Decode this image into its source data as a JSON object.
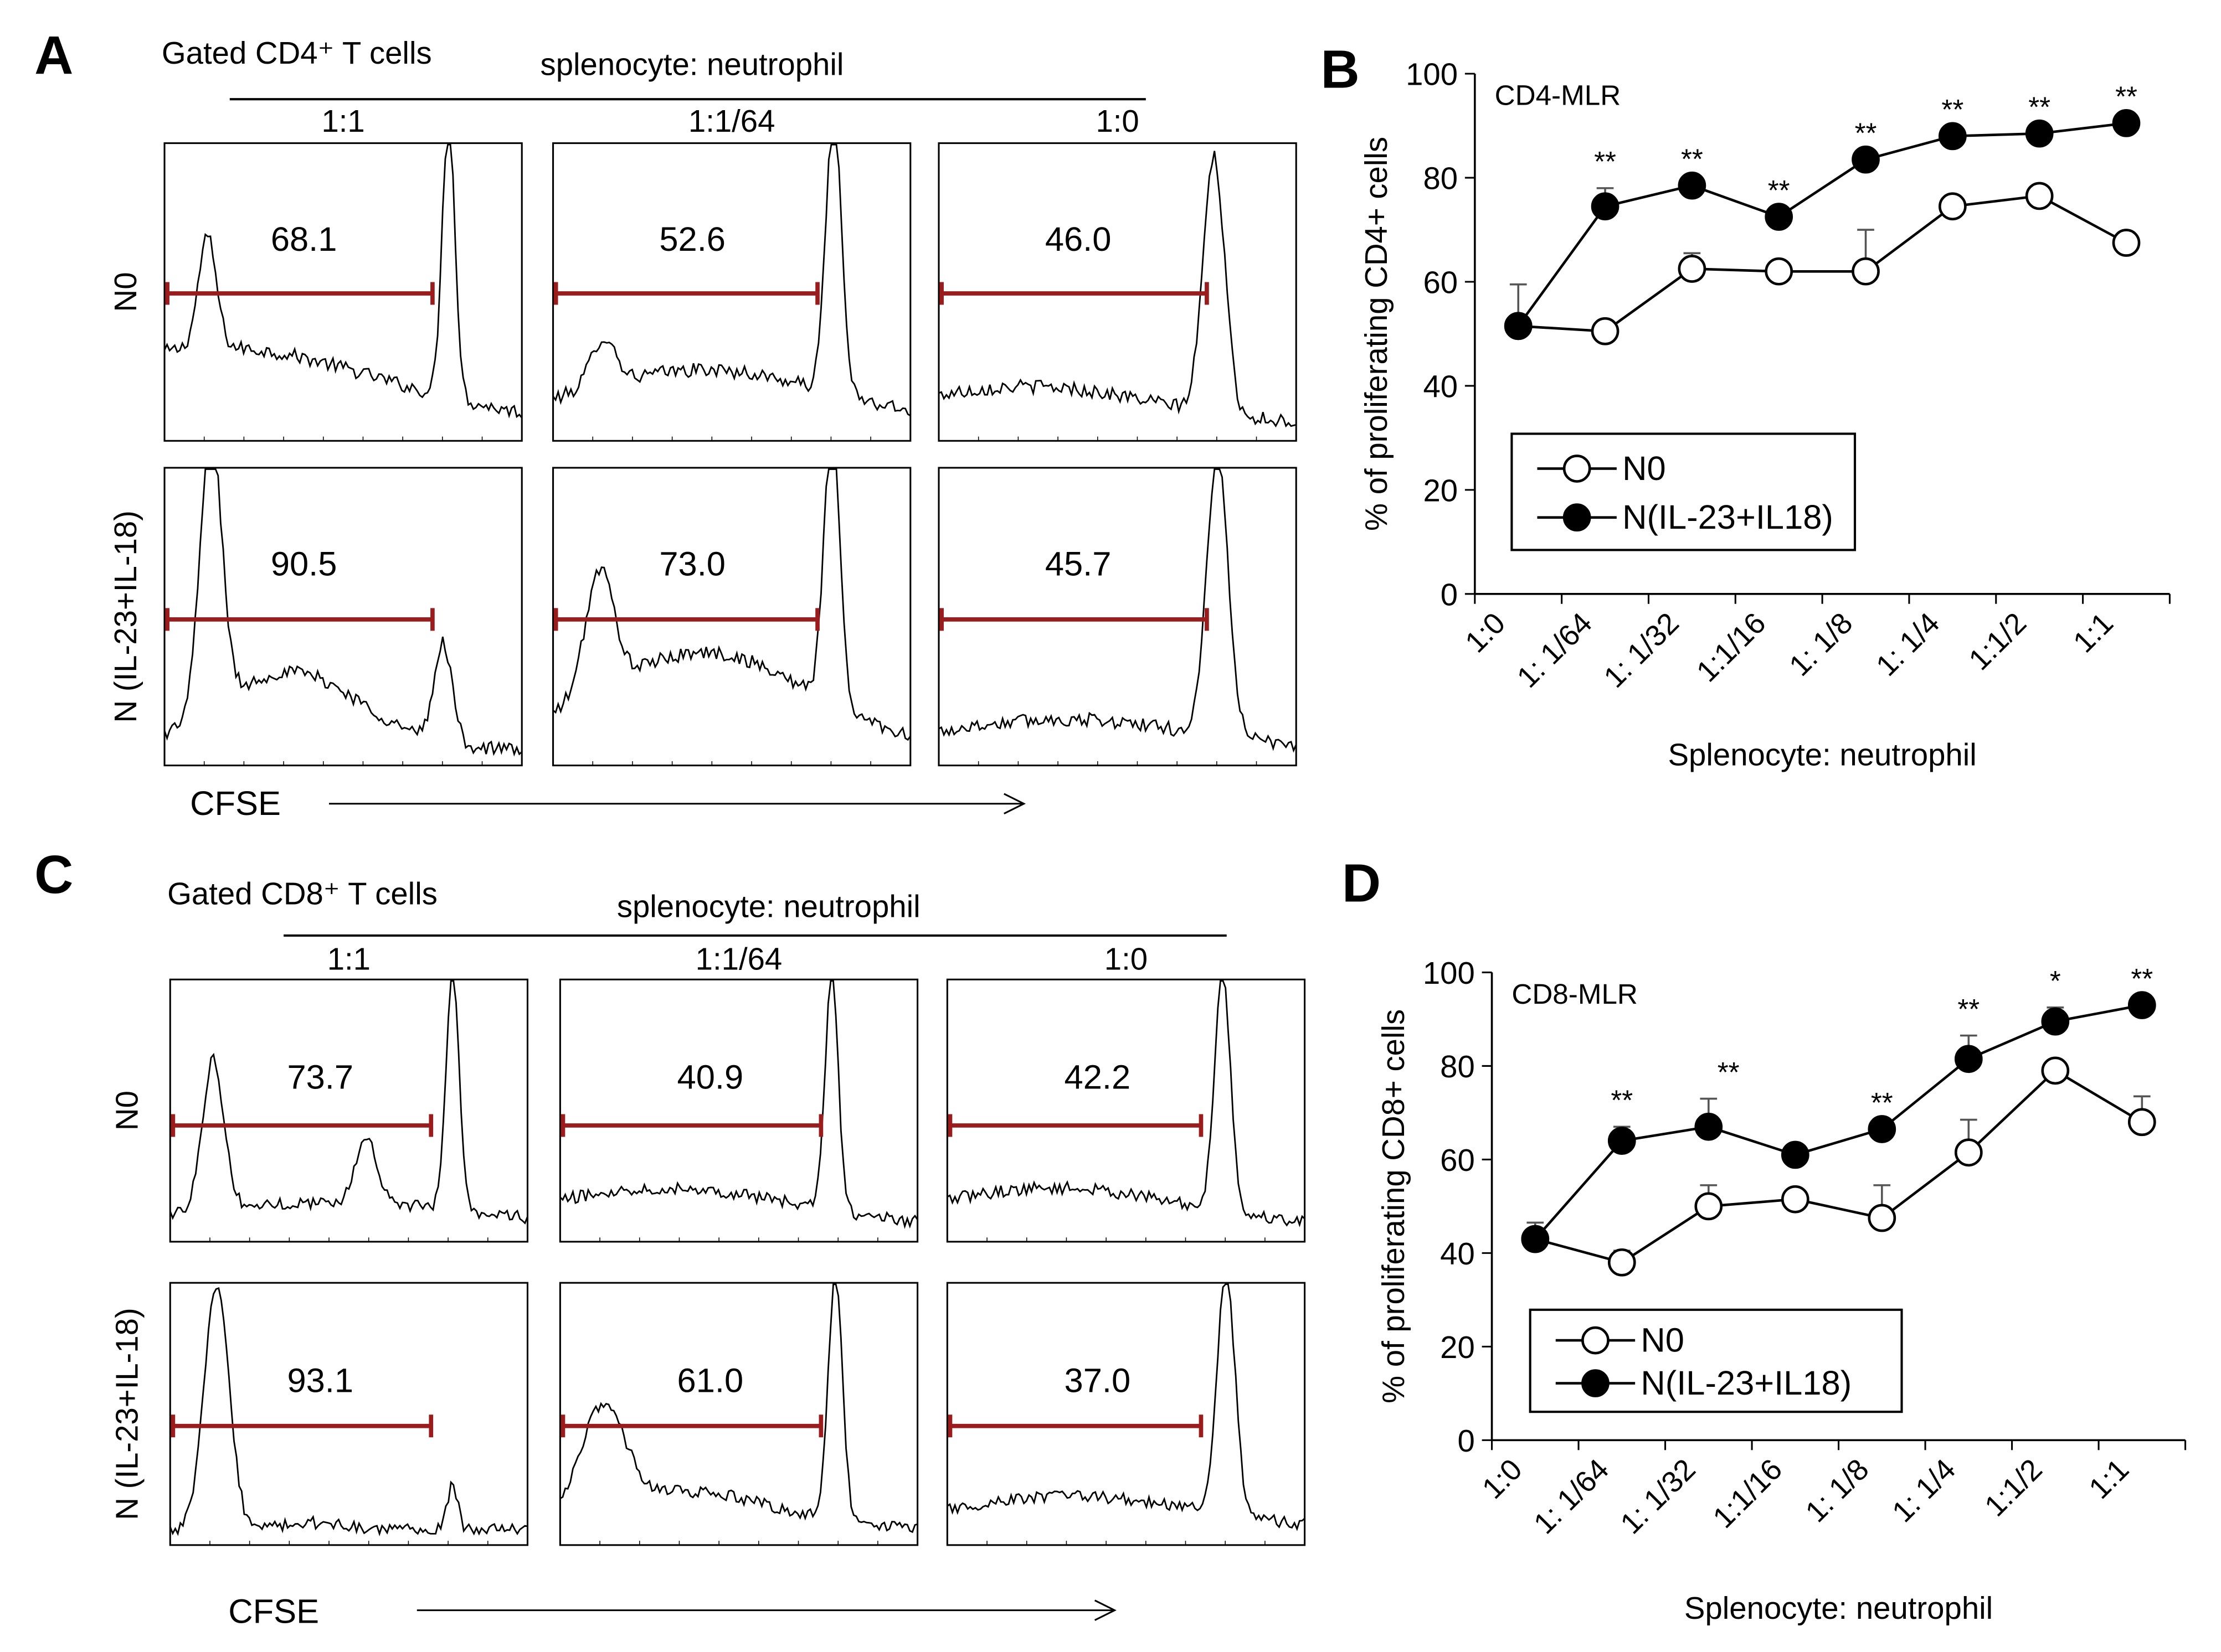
{
  "figure": {
    "panels": {
      "A": {
        "letter": "A",
        "gate_label": "Gated CD4⁺ T cells",
        "header": "splenocyte: neutrophil",
        "ratios": [
          "1:1",
          "1:1/64",
          "1:0"
        ],
        "row_labels": [
          "N0",
          "N (IL-23+IL-18)"
        ],
        "values": [
          [
            "68.1",
            "52.6",
            "46.0"
          ],
          [
            "90.5",
            "73.0",
            "45.7"
          ]
        ],
        "axis_label": "CFSE"
      },
      "C": {
        "letter": "C",
        "gate_label": "Gated CD8⁺ T cells",
        "header": "splenocyte: neutrophil",
        "ratios": [
          "1:1",
          "1:1/64",
          "1:0"
        ],
        "row_labels": [
          "N0",
          "N (IL-23+IL-18)"
        ],
        "values": [
          [
            "73.7",
            "40.9",
            "42.2"
          ],
          [
            "93.1",
            "61.0",
            "37.0"
          ]
        ],
        "axis_label": "CFSE"
      },
      "B": {
        "letter": "B",
        "chart_title": "CD4-MLR",
        "significance": [
          "",
          "**",
          "**",
          "**",
          "**",
          "**",
          "**",
          "**"
        ]
      },
      "D": {
        "letter": "D",
        "chart_title": "CD8-MLR",
        "significance": [
          "",
          "**",
          "**",
          "",
          "**",
          "**",
          "*",
          "**"
        ]
      }
    },
    "colors": {
      "gate": "#9b1c1c",
      "ink": "#000000"
    }
  },
  "chart_data": [
    {
      "panel": "B",
      "type": "line",
      "title": "CD4-MLR",
      "xlabel": "Splenocyte: neutrophil",
      "ylabel": "% of proliferating CD4+ cells",
      "categories": [
        "1:0",
        "1:  1/64",
        "1:  1/32",
        "1:1/16",
        "1:  1/8",
        "1:  1/4",
        "1:1/2",
        "1:1"
      ],
      "ylim": [
        0,
        100
      ],
      "yticks": [
        0,
        20,
        40,
        60,
        80,
        100
      ],
      "legend": "inside-bottom-left",
      "series": [
        {
          "name": "N0",
          "marker": "open-circle",
          "values": [
            51.5,
            50.5,
            62.5,
            62,
            62,
            74.5,
            76.5,
            67.5
          ],
          "errors": [
            8,
            0,
            3,
            0,
            8,
            0,
            0,
            0
          ]
        },
        {
          "name": "N(IL-23+IL18)",
          "marker": "filled-circle",
          "values": [
            51.5,
            74.5,
            78.5,
            72.5,
            83.5,
            88,
            88.5,
            90.5
          ],
          "errors": [
            0,
            3.5,
            0,
            0,
            0,
            0,
            0,
            0
          ]
        }
      ]
    },
    {
      "panel": "D",
      "type": "line",
      "title": "CD8-MLR",
      "xlabel": "Splenocyte: neutrophil",
      "ylabel": "% of proliferating CD8+ cells",
      "categories": [
        "1:0",
        "1:  1/64",
        "1:  1/32",
        "1:1/16",
        "1:  1/8",
        "1:  1/4",
        "1:1/2",
        "1:1"
      ],
      "ylim": [
        0,
        100
      ],
      "yticks": [
        0,
        20,
        40,
        60,
        80,
        100
      ],
      "legend": "inside-bottom-left",
      "series": [
        {
          "name": "N0",
          "marker": "open-circle",
          "values": [
            43,
            38,
            50,
            51.5,
            47.5,
            61.5,
            79,
            68
          ],
          "errors": [
            3.5,
            2.5,
            4.5,
            0,
            7,
            7,
            0,
            5.5
          ]
        },
        {
          "name": "N(IL-23+IL18)",
          "marker": "filled-circle",
          "values": [
            43,
            64,
            67,
            61,
            66.5,
            81.5,
            89.5,
            93
          ],
          "errors": [
            0,
            3,
            6,
            0,
            0,
            5,
            3,
            0
          ]
        }
      ]
    }
  ]
}
